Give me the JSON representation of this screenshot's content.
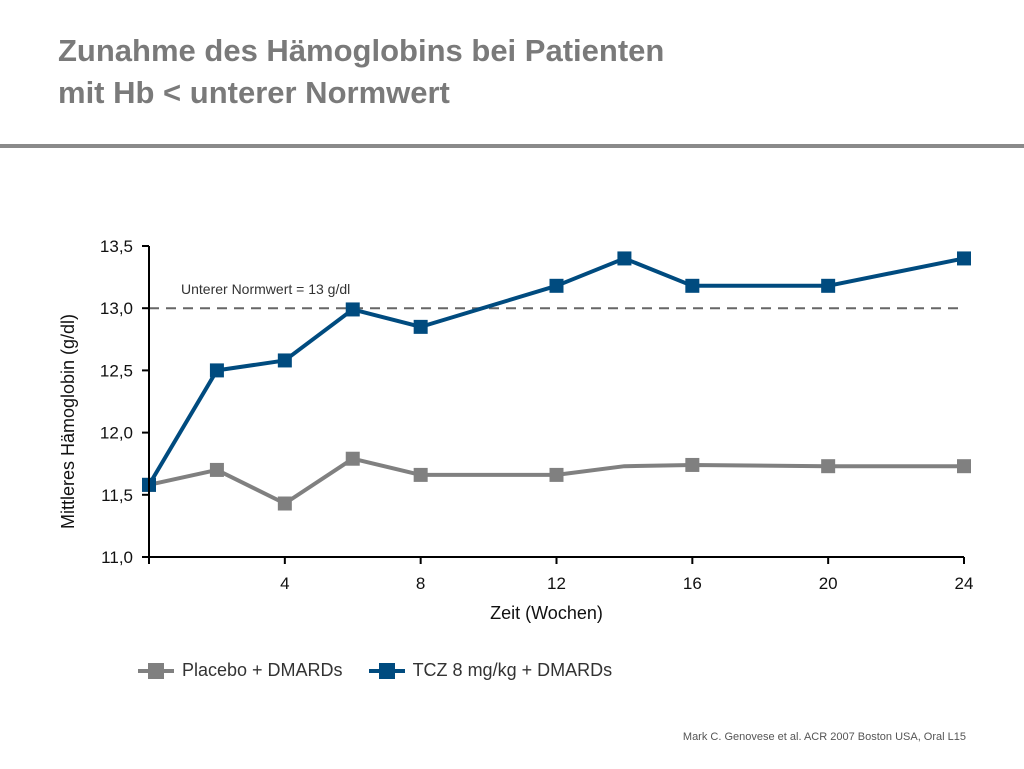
{
  "slide": {
    "title_line1": "Zunahme des Hämoglobins bei Patienten",
    "title_line2": "mit Hb < unterer Normwert",
    "source": "Mark C. Genovese et al. ACR 2007 Boston USA, Oral L15"
  },
  "chart_data": {
    "type": "line",
    "xlabel": "Zeit (Wochen)",
    "ylabel": "Mittleres Hämoglobin (g/dl)",
    "xlim": [
      0,
      24
    ],
    "ylim": [
      11.0,
      13.5
    ],
    "xticks": [
      4,
      8,
      12,
      16,
      20,
      24
    ],
    "xtick_labels": [
      "4",
      "8",
      "12",
      "16",
      "20",
      "24"
    ],
    "yticks": [
      11.0,
      11.5,
      12.0,
      12.5,
      13.0,
      13.5
    ],
    "ytick_labels": [
      "11,0",
      "11,5",
      "12,0",
      "12,5",
      "13,0",
      "13,5"
    ],
    "grid": false,
    "legend_position": "bottom-left",
    "reference_line": {
      "y": 13.0,
      "label": "Unterer Normwert = 13 g/dl",
      "style": "dashed"
    },
    "series": [
      {
        "name": "Placebo + DMARDs",
        "color": "#808080",
        "x": [
          0,
          2,
          4,
          6,
          8,
          12,
          14,
          16,
          20,
          24
        ],
        "y": [
          11.58,
          11.7,
          11.43,
          11.79,
          11.66,
          11.66,
          11.73,
          11.74,
          11.73,
          11.73
        ],
        "markers": [
          true,
          true,
          true,
          true,
          true,
          true,
          false,
          true,
          true,
          true
        ]
      },
      {
        "name": "TCZ 8 mg/kg + DMARDs",
        "color": "#004b7f",
        "x": [
          0,
          2,
          4,
          6,
          8,
          12,
          14,
          16,
          20,
          24
        ],
        "y": [
          11.58,
          12.5,
          12.58,
          12.99,
          12.85,
          13.18,
          13.4,
          13.18,
          13.18,
          13.4
        ],
        "markers": [
          true,
          true,
          true,
          true,
          true,
          true,
          true,
          true,
          true,
          true
        ]
      }
    ]
  }
}
